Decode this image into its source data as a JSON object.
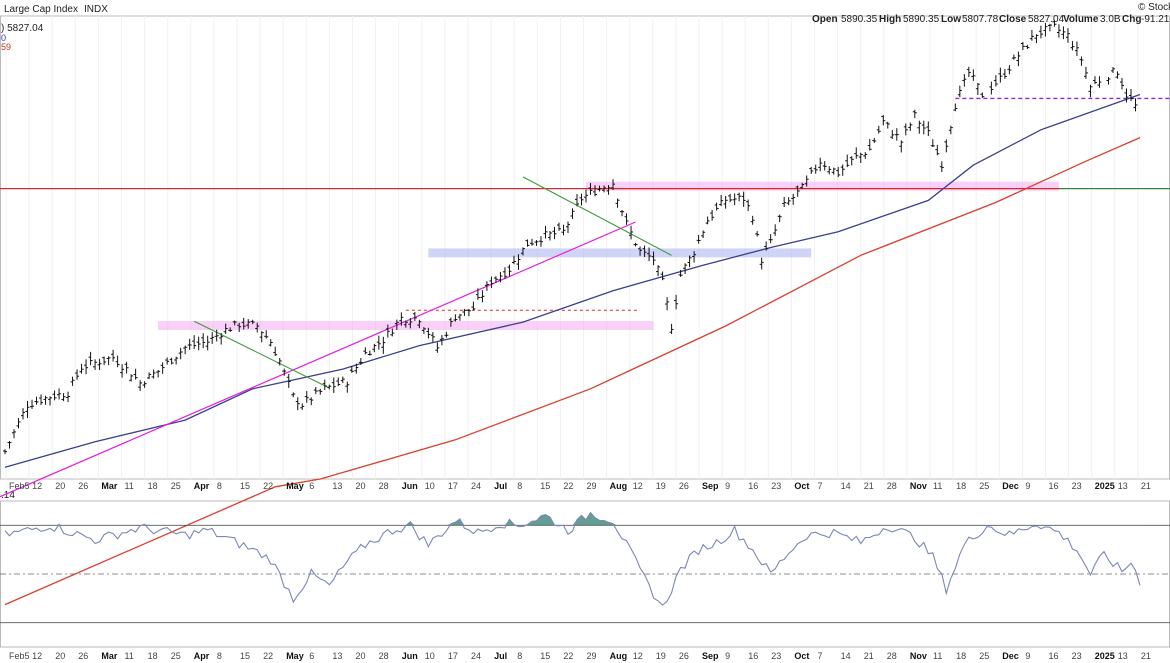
{
  "header": {
    "title": "Large Cap Index",
    "symbol": "INDX",
    "brand": "© Stock",
    "ohlc": [
      {
        "label": "Open",
        "value": "5890.35"
      },
      {
        "label": "High",
        "value": "5890.35"
      },
      {
        "label": "Low",
        "value": "5807.78"
      },
      {
        "label": "Close",
        "value": "5827.04"
      },
      {
        "label": "Volume",
        "value": "3.0B"
      },
      {
        "label": "Chg",
        "value": "-91.21"
      }
    ]
  },
  "legend": {
    "price": ") 5827.04",
    "line2": "0",
    "line3": "59"
  },
  "rsi_panel": {
    "label": ".14"
  },
  "colors": {
    "price_bars": "#111111",
    "ma_short": "#3b3f8f",
    "ma_long": "#d9402b",
    "trend_magenta": "#e21ee0",
    "trend_green": "#3f9a3f",
    "resistance_red": "#d12b2b",
    "support_green": "#2e8b3a",
    "band_pink": "#f4a9f0",
    "band_blue": "#a9b2f2",
    "rsi_line": "#7c86b8",
    "rsi_fill": "#2f7d6d"
  },
  "chart_data": {
    "type": "bar",
    "subtype": "ohlc-price-chart-with-rsi",
    "title": "Large Cap Index INDX",
    "x_axis_labels": [
      "Feb5",
      "12",
      "20",
      "26",
      "Mar",
      "11",
      "18",
      "25",
      "Apr",
      "8",
      "15",
      "22",
      "May",
      "6",
      "13",
      "20",
      "28",
      "Jun",
      "10",
      "17",
      "24",
      "Jul",
      "8",
      "15",
      "22",
      "29",
      "Aug",
      "12",
      "19",
      "26",
      "Sep",
      "9",
      "16",
      "23",
      "Oct",
      "7",
      "14",
      "21",
      "28",
      "Nov",
      "11",
      "18",
      "25",
      "Dec",
      "9",
      "16",
      "23",
      "2025",
      "13",
      "21"
    ],
    "bold_labels": [
      "Mar",
      "Apr",
      "May",
      "Jun",
      "Jul",
      "Aug",
      "Sep",
      "Oct",
      "Nov",
      "Dec",
      "2025"
    ],
    "price_ylim": [
      4900,
      6080
    ],
    "price_pivots": [
      [
        0,
        4970
      ],
      [
        5,
        5090
      ],
      [
        10,
        5110
      ],
      [
        14,
        5120
      ],
      [
        17,
        5185
      ],
      [
        21,
        5200
      ],
      [
        24,
        5210
      ],
      [
        28,
        5170
      ],
      [
        30,
        5145
      ],
      [
        34,
        5175
      ],
      [
        40,
        5235
      ],
      [
        45,
        5250
      ],
      [
        49,
        5280
      ],
      [
        52,
        5295
      ],
      [
        56,
        5290
      ],
      [
        59,
        5250
      ],
      [
        61,
        5200
      ],
      [
        64,
        5110
      ],
      [
        66,
        5090
      ],
      [
        71,
        5130
      ],
      [
        76,
        5150
      ],
      [
        80,
        5220
      ],
      [
        84,
        5255
      ],
      [
        88,
        5310
      ],
      [
        92,
        5310
      ],
      [
        96,
        5235
      ],
      [
        100,
        5315
      ],
      [
        104,
        5335
      ],
      [
        108,
        5405
      ],
      [
        112,
        5435
      ],
      [
        116,
        5500
      ],
      [
        120,
        5520
      ],
      [
        124,
        5530
      ],
      [
        128,
        5615
      ],
      [
        131,
        5635
      ],
      [
        135,
        5655
      ],
      [
        138,
        5550
      ],
      [
        141,
        5480
      ],
      [
        144,
        5460
      ],
      [
        146,
        5400
      ],
      [
        148,
        5290
      ],
      [
        150,
        5420
      ],
      [
        153,
        5480
      ],
      [
        156,
        5560
      ],
      [
        160,
        5612
      ],
      [
        164,
        5615
      ],
      [
        166,
        5570
      ],
      [
        168,
        5460
      ],
      [
        170,
        5502
      ],
      [
        173,
        5595
      ],
      [
        177,
        5640
      ],
      [
        181,
        5710
      ],
      [
        185,
        5680
      ],
      [
        189,
        5720
      ],
      [
        192,
        5740
      ],
      [
        195,
        5810
      ],
      [
        199,
        5760
      ],
      [
        202,
        5825
      ],
      [
        205,
        5780
      ],
      [
        208,
        5705
      ],
      [
        211,
        5855
      ],
      [
        214,
        5935
      ],
      [
        217,
        5880
      ],
      [
        221,
        5920
      ],
      [
        225,
        5980
      ],
      [
        229,
        6035
      ],
      [
        233,
        6050
      ],
      [
        236,
        6030
      ],
      [
        239,
        5970
      ],
      [
        241,
        5900
      ],
      [
        244,
        5925
      ],
      [
        247,
        5940
      ],
      [
        249,
        5880
      ],
      [
        251,
        5850
      ]
    ],
    "ma_short_points": [
      [
        0,
        4930
      ],
      [
        20,
        4995
      ],
      [
        40,
        5050
      ],
      [
        55,
        5130
      ],
      [
        75,
        5180
      ],
      [
        92,
        5240
      ],
      [
        115,
        5300
      ],
      [
        135,
        5380
      ],
      [
        155,
        5445
      ],
      [
        170,
        5490
      ],
      [
        185,
        5530
      ],
      [
        205,
        5610
      ],
      [
        215,
        5700
      ],
      [
        230,
        5790
      ],
      [
        252,
        5880
      ]
    ],
    "ma_long_points": [
      [
        0,
        4580
      ],
      [
        60,
        4880
      ],
      [
        70,
        4900
      ],
      [
        100,
        5000
      ],
      [
        130,
        5130
      ],
      [
        160,
        5290
      ],
      [
        190,
        5470
      ],
      [
        220,
        5605
      ],
      [
        240,
        5710
      ],
      [
        252,
        5770
      ]
    ],
    "reference_lines": {
      "resistance_red": 5640,
      "support_green": 5640,
      "dashed_purple": 5870,
      "dashed_red": 5330
    },
    "rsi": {
      "ylim": [
        20,
        80
      ],
      "levels": [
        70,
        50,
        30
      ],
      "points": [
        [
          0,
          66
        ],
        [
          10,
          70
        ],
        [
          20,
          64
        ],
        [
          30,
          69
        ],
        [
          40,
          66
        ],
        [
          45,
          68
        ],
        [
          50,
          64
        ],
        [
          55,
          60
        ],
        [
          59,
          56
        ],
        [
          64,
          40
        ],
        [
          68,
          50
        ],
        [
          72,
          45
        ],
        [
          76,
          55
        ],
        [
          80,
          62
        ],
        [
          86,
          68
        ],
        [
          90,
          70
        ],
        [
          94,
          62
        ],
        [
          100,
          72
        ],
        [
          105,
          67
        ],
        [
          110,
          71
        ],
        [
          114,
          70
        ],
        [
          120,
          74
        ],
        [
          125,
          68
        ],
        [
          130,
          75
        ],
        [
          135,
          72
        ],
        [
          138,
          62
        ],
        [
          142,
          48
        ],
        [
          146,
          36
        ],
        [
          150,
          52
        ],
        [
          154,
          60
        ],
        [
          158,
          63
        ],
        [
          162,
          68
        ],
        [
          166,
          60
        ],
        [
          170,
          50
        ],
        [
          174,
          59
        ],
        [
          178,
          66
        ],
        [
          184,
          67
        ],
        [
          190,
          63
        ],
        [
          196,
          70
        ],
        [
          202,
          65
        ],
        [
          206,
          57
        ],
        [
          209,
          44
        ],
        [
          213,
          62
        ],
        [
          218,
          70
        ],
        [
          223,
          66
        ],
        [
          229,
          71
        ],
        [
          234,
          67
        ],
        [
          238,
          60
        ],
        [
          241,
          50
        ],
        [
          244,
          58
        ],
        [
          248,
          51
        ],
        [
          250,
          55
        ],
        [
          252,
          47
        ]
      ]
    }
  }
}
